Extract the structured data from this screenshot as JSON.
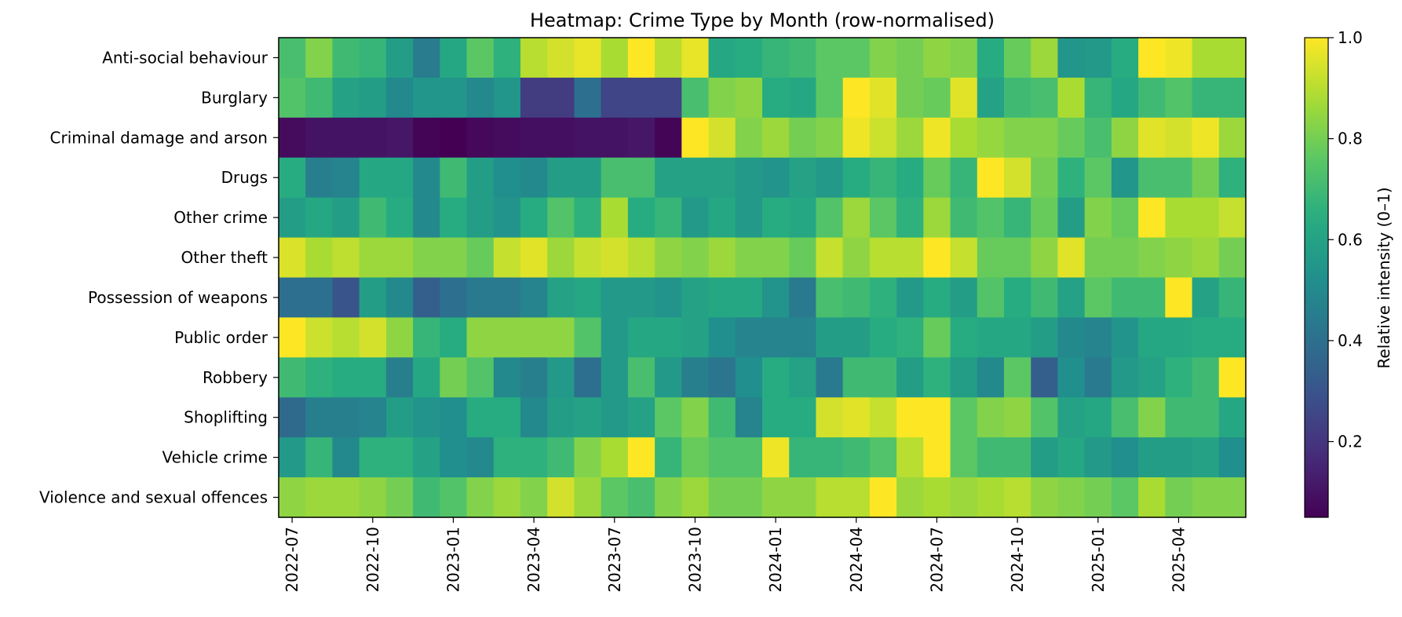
{
  "chart_data": {
    "type": "heatmap",
    "title": "Heatmap: Crime Type by Month (row-normalised)",
    "xlabel": "",
    "ylabel": "",
    "rows": [
      "Anti-social behaviour",
      "Burglary",
      "Criminal damage and arson",
      "Drugs",
      "Other crime",
      "Other theft",
      "Possession of weapons",
      "Public order",
      "Robbery",
      "Shoplifting",
      "Vehicle crime",
      "Violence and sexual offences"
    ],
    "columns": [
      "2022-07",
      "2022-08",
      "2022-09",
      "2022-10",
      "2022-11",
      "2022-12",
      "2023-01",
      "2023-02",
      "2023-03",
      "2023-04",
      "2023-05",
      "2023-06",
      "2023-07",
      "2023-08",
      "2023-09",
      "2023-10",
      "2023-11",
      "2023-12",
      "2024-01",
      "2024-02",
      "2024-03",
      "2024-04",
      "2024-05",
      "2024-06",
      "2024-07",
      "2024-08",
      "2024-09",
      "2024-10",
      "2024-11",
      "2024-12",
      "2025-01",
      "2025-02",
      "2025-03",
      "2025-04",
      "2025-05",
      "2025-06"
    ],
    "x_tick_labels": [
      "2022-07",
      "2022-10",
      "2023-01",
      "2023-04",
      "2023-07",
      "2023-10",
      "2024-01",
      "2024-04",
      "2024-07",
      "2024-10",
      "2025-01",
      "2025-04"
    ],
    "values": [
      [
        0.72,
        0.82,
        0.7,
        0.68,
        0.58,
        0.45,
        0.62,
        0.76,
        0.66,
        0.9,
        0.94,
        0.97,
        0.88,
        1.0,
        0.9,
        0.97,
        0.62,
        0.64,
        0.68,
        0.7,
        0.76,
        0.76,
        0.82,
        0.8,
        0.84,
        0.82,
        0.64,
        0.78,
        0.86,
        0.55,
        0.56,
        0.64,
        1.0,
        0.98,
        0.88,
        0.88
      ],
      [
        0.74,
        0.7,
        0.6,
        0.58,
        0.5,
        0.55,
        0.55,
        0.5,
        0.55,
        0.22,
        0.22,
        0.4,
        0.25,
        0.25,
        0.25,
        0.72,
        0.82,
        0.84,
        0.64,
        0.62,
        0.76,
        1.0,
        0.96,
        0.8,
        0.78,
        0.96,
        0.6,
        0.7,
        0.72,
        0.88,
        0.68,
        0.62,
        0.7,
        0.74,
        0.68,
        0.68
      ],
      [
        0.08,
        0.1,
        0.1,
        0.1,
        0.11,
        0.06,
        0.05,
        0.07,
        0.08,
        0.09,
        0.09,
        0.1,
        0.1,
        0.11,
        0.06,
        1.0,
        0.94,
        0.82,
        0.86,
        0.8,
        0.82,
        0.98,
        0.93,
        0.86,
        0.98,
        0.88,
        0.85,
        0.82,
        0.82,
        0.78,
        0.72,
        0.84,
        0.96,
        0.94,
        0.98,
        0.86
      ],
      [
        0.64,
        0.46,
        0.48,
        0.62,
        0.62,
        0.5,
        0.7,
        0.58,
        0.52,
        0.5,
        0.58,
        0.58,
        0.72,
        0.72,
        0.6,
        0.6,
        0.6,
        0.56,
        0.54,
        0.6,
        0.56,
        0.64,
        0.68,
        0.64,
        0.78,
        0.68,
        1.0,
        0.94,
        0.8,
        0.66,
        0.76,
        0.55,
        0.72,
        0.72,
        0.8,
        0.66
      ],
      [
        0.58,
        0.62,
        0.58,
        0.7,
        0.64,
        0.5,
        0.64,
        0.58,
        0.54,
        0.64,
        0.74,
        0.66,
        0.88,
        0.64,
        0.68,
        0.56,
        0.62,
        0.56,
        0.64,
        0.62,
        0.74,
        0.86,
        0.76,
        0.66,
        0.86,
        0.7,
        0.74,
        0.68,
        0.78,
        0.58,
        0.82,
        0.78,
        1.0,
        0.88,
        0.88,
        0.92
      ],
      [
        0.95,
        0.88,
        0.91,
        0.86,
        0.86,
        0.82,
        0.82,
        0.78,
        0.92,
        0.96,
        0.86,
        0.92,
        0.94,
        0.9,
        0.84,
        0.82,
        0.86,
        0.82,
        0.82,
        0.78,
        0.92,
        0.84,
        0.9,
        0.9,
        1.0,
        0.92,
        0.78,
        0.78,
        0.84,
        0.96,
        0.8,
        0.8,
        0.82,
        0.84,
        0.86,
        0.8
      ],
      [
        0.4,
        0.4,
        0.3,
        0.58,
        0.5,
        0.34,
        0.4,
        0.44,
        0.44,
        0.48,
        0.6,
        0.62,
        0.56,
        0.56,
        0.54,
        0.6,
        0.62,
        0.62,
        0.54,
        0.44,
        0.72,
        0.7,
        0.66,
        0.56,
        0.64,
        0.58,
        0.74,
        0.64,
        0.7,
        0.6,
        0.76,
        0.7,
        0.7,
        1.0,
        0.6,
        0.68
      ],
      [
        1.0,
        0.93,
        0.9,
        0.94,
        0.84,
        0.68,
        0.64,
        0.84,
        0.84,
        0.84,
        0.84,
        0.74,
        0.56,
        0.62,
        0.62,
        0.6,
        0.52,
        0.48,
        0.48,
        0.48,
        0.58,
        0.58,
        0.64,
        0.66,
        0.78,
        0.64,
        0.62,
        0.62,
        0.58,
        0.5,
        0.48,
        0.54,
        0.62,
        0.62,
        0.64,
        0.64
      ],
      [
        0.7,
        0.66,
        0.64,
        0.64,
        0.46,
        0.62,
        0.8,
        0.74,
        0.5,
        0.46,
        0.56,
        0.4,
        0.56,
        0.72,
        0.56,
        0.46,
        0.42,
        0.52,
        0.64,
        0.6,
        0.44,
        0.7,
        0.7,
        0.58,
        0.66,
        0.58,
        0.5,
        0.76,
        0.34,
        0.52,
        0.44,
        0.56,
        0.6,
        0.66,
        0.7,
        1.0
      ],
      [
        0.38,
        0.46,
        0.46,
        0.48,
        0.58,
        0.54,
        0.52,
        0.64,
        0.64,
        0.5,
        0.58,
        0.6,
        0.56,
        0.6,
        0.76,
        0.82,
        0.7,
        0.48,
        0.64,
        0.64,
        0.94,
        0.96,
        0.92,
        1.0,
        1.0,
        0.76,
        0.82,
        0.84,
        0.74,
        0.6,
        0.62,
        0.72,
        0.82,
        0.7,
        0.7,
        0.62
      ],
      [
        0.56,
        0.68,
        0.5,
        0.66,
        0.66,
        0.6,
        0.52,
        0.5,
        0.66,
        0.66,
        0.7,
        0.82,
        0.88,
        1.0,
        0.68,
        0.78,
        0.74,
        0.74,
        0.98,
        0.68,
        0.68,
        0.7,
        0.74,
        0.9,
        1.0,
        0.76,
        0.7,
        0.7,
        0.58,
        0.62,
        0.56,
        0.52,
        0.58,
        0.58,
        0.6,
        0.52
      ],
      [
        0.84,
        0.86,
        0.86,
        0.84,
        0.8,
        0.7,
        0.74,
        0.82,
        0.86,
        0.82,
        0.94,
        0.86,
        0.76,
        0.72,
        0.82,
        0.86,
        0.8,
        0.8,
        0.84,
        0.84,
        0.9,
        0.9,
        1.0,
        0.86,
        0.88,
        0.86,
        0.88,
        0.9,
        0.84,
        0.82,
        0.8,
        0.76,
        0.88,
        0.8,
        0.82,
        0.82
      ]
    ],
    "colormap": "viridis",
    "colorbar": {
      "label": "Relative intensity (0–1)",
      "range": [
        0.05,
        1.0
      ],
      "ticks": [
        "0.2",
        "0.4",
        "0.6",
        "0.8",
        "1.0"
      ],
      "tick_values": [
        0.2,
        0.4,
        0.6,
        0.8,
        1.0
      ]
    },
    "grid": false,
    "legend": "colorbar-right"
  }
}
